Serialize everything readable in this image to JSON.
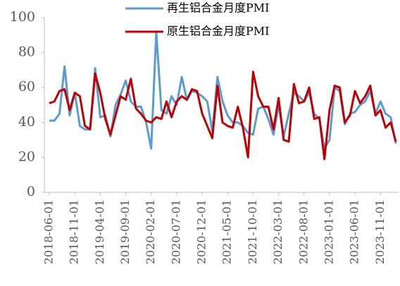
{
  "chart_data": {
    "type": "line",
    "categories": [
      "2018-06-01",
      null,
      null,
      null,
      null,
      "2018-11-01",
      null,
      null,
      null,
      null,
      "2019-04-01",
      null,
      null,
      null,
      null,
      "2019-09-01",
      null,
      null,
      null,
      null,
      "2020-02-01",
      null,
      null,
      null,
      null,
      "2020-07-01",
      null,
      null,
      null,
      null,
      "2020-12-01",
      null,
      null,
      null,
      null,
      "2021-05-01",
      null,
      null,
      null,
      null,
      "2021-10-01",
      null,
      null,
      null,
      null,
      "2022-03-01",
      null,
      null,
      null,
      null,
      "2022-08-01",
      null,
      null,
      null,
      null,
      "2023-01-01",
      null,
      null,
      null,
      null,
      "2023-06-01",
      null,
      null,
      null,
      null,
      "2023-11-01",
      null,
      null,
      null
    ],
    "series": [
      {
        "name": "再生铝合金月度PMI",
        "color": "#5b9bd5",
        "values": [
          41,
          41,
          45,
          72,
          44,
          57,
          38,
          36,
          36,
          71,
          43,
          44,
          32,
          50,
          56,
          64,
          52,
          49,
          49,
          40,
          25,
          92,
          47,
          45,
          55,
          50,
          66,
          53,
          58,
          57,
          55,
          52,
          35,
          66,
          52,
          44,
          40,
          40,
          38,
          34,
          33,
          48,
          49,
          42,
          33,
          50,
          32,
          45,
          57,
          55,
          52,
          57,
          45,
          42,
          25,
          30,
          60,
          58,
          39,
          45,
          46,
          50,
          52,
          58,
          45,
          52,
          45,
          43,
          28
        ]
      },
      {
        "name": "原生铝合金月度PMI",
        "color": "#c00000",
        "values": [
          51,
          52,
          58,
          59,
          47,
          57,
          55,
          38,
          36,
          68,
          57,
          42,
          33,
          44,
          55,
          53,
          65,
          48,
          45,
          41,
          40,
          43,
          42,
          52,
          43,
          52,
          55,
          53,
          59,
          58,
          45,
          38,
          31,
          61,
          40,
          38,
          37,
          49,
          37,
          20,
          69,
          55,
          49,
          49,
          36,
          54,
          30,
          29,
          62,
          51,
          52,
          60,
          42,
          43,
          19,
          47,
          61,
          60,
          40,
          44,
          58,
          51,
          55,
          61,
          44,
          47,
          37,
          40,
          29
        ]
      }
    ],
    "ylim": [
      0,
      100
    ],
    "yticks": [
      0,
      20,
      40,
      60,
      80,
      100
    ]
  }
}
